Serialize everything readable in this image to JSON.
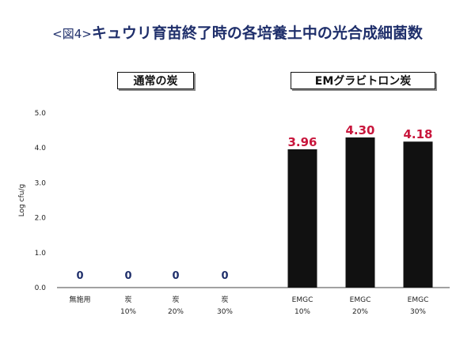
{
  "title": {
    "tag": "<図4>",
    "main": "キュウリ育苗終了時の各培養土中の光合成細菌数"
  },
  "groups": [
    {
      "label": "通常の炭"
    },
    {
      "label": "EMグラビトロン炭"
    }
  ],
  "colors": {
    "bar": "#111111",
    "value_label": "#c8163c",
    "zero_label": "#1f2f6b",
    "title": "#1f2f6b"
  },
  "chart_data": {
    "type": "bar",
    "ylabel": "Log cfu/g",
    "ylim": [
      0,
      5
    ],
    "yticks": [
      "0.0",
      "1.0",
      "2.0",
      "3.0",
      "4.0",
      "5.0"
    ],
    "grid": false,
    "categories": [
      [
        "無施用",
        ""
      ],
      [
        "炭",
        "10%"
      ],
      [
        "炭",
        "20%"
      ],
      [
        "炭",
        "30%"
      ],
      [
        "EMGC",
        "10%"
      ],
      [
        "EMGC",
        "20%"
      ],
      [
        "EMGC",
        "30%"
      ]
    ],
    "values": [
      0,
      0,
      0,
      0,
      3.96,
      4.3,
      4.18
    ],
    "value_labels": [
      "0",
      "0",
      "0",
      "0",
      "3.96",
      "4.30",
      "4.18"
    ]
  }
}
